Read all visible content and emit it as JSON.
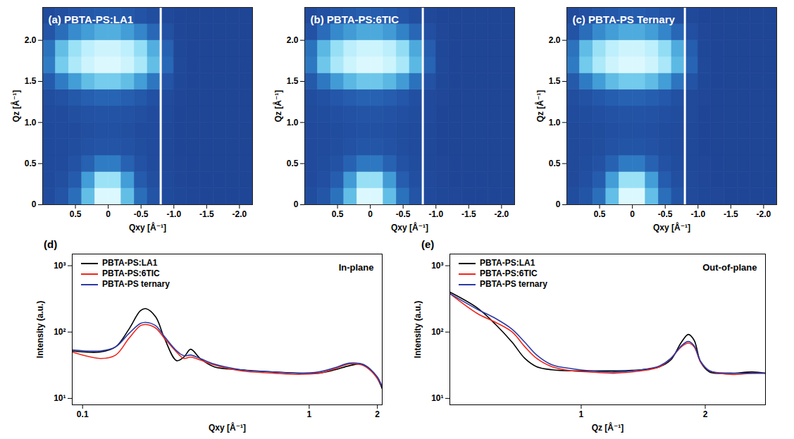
{
  "chart_data": [
    {
      "type": "heatmap",
      "title": "(a) PBTA-PS:LA1",
      "x_label": "Qxy [Å⁻¹]",
      "y_label": "Qz [Å⁻¹]",
      "xlim": [
        1.0,
        -2.2
      ],
      "ylim": [
        0,
        2.4
      ],
      "xticks": [
        0.5,
        0,
        -0.5,
        {
          "value": -1,
          "label": "-1.0"
        },
        -1.5,
        {
          "value": -2,
          "label": "-2.0"
        }
      ],
      "yticks": [
        0,
        0.5,
        {
          "value": 1,
          "label": "1.0"
        },
        1.5,
        {
          "value": 2,
          "label": "2.0"
        }
      ],
      "detector_gap_qxy": -0.8,
      "qxy": [
        0.9,
        0.7,
        0.5,
        0.3,
        0.1,
        -0.1,
        -0.3,
        -0.5,
        -0.7,
        -0.9,
        -1.1,
        -1.3,
        -1.5,
        -1.7,
        -1.9,
        -2.1
      ],
      "qz": [
        0.1,
        0.3,
        0.5,
        0.7,
        0.9,
        1.1,
        1.3,
        1.5,
        1.7,
        1.9,
        2.1,
        2.3
      ],
      "intensity": [
        [
          0.12,
          0.18,
          0.3,
          0.55,
          0.9,
          0.9,
          0.55,
          0.3,
          0.18,
          0.1,
          0.08,
          0.07,
          0.06,
          0.06,
          0.06,
          0.06
        ],
        [
          0.1,
          0.14,
          0.22,
          0.45,
          0.7,
          0.7,
          0.45,
          0.22,
          0.14,
          0.1,
          0.07,
          0.06,
          0.06,
          0.06,
          0.05,
          0.05
        ],
        [
          0.1,
          0.12,
          0.16,
          0.25,
          0.35,
          0.35,
          0.25,
          0.16,
          0.12,
          0.09,
          0.07,
          0.06,
          0.05,
          0.05,
          0.05,
          0.05
        ],
        [
          0.1,
          0.11,
          0.13,
          0.16,
          0.18,
          0.18,
          0.16,
          0.13,
          0.11,
          0.09,
          0.06,
          0.05,
          0.05,
          0.05,
          0.05,
          0.05
        ],
        [
          0.1,
          0.11,
          0.12,
          0.14,
          0.15,
          0.15,
          0.14,
          0.12,
          0.11,
          0.09,
          0.06,
          0.05,
          0.05,
          0.05,
          0.05,
          0.05
        ],
        [
          0.11,
          0.12,
          0.14,
          0.16,
          0.17,
          0.17,
          0.16,
          0.14,
          0.12,
          0.1,
          0.06,
          0.05,
          0.05,
          0.05,
          0.05,
          0.05
        ],
        [
          0.13,
          0.16,
          0.2,
          0.24,
          0.26,
          0.26,
          0.24,
          0.2,
          0.15,
          0.11,
          0.07,
          0.05,
          0.05,
          0.05,
          0.05,
          0.05
        ],
        [
          0.22,
          0.35,
          0.45,
          0.55,
          0.6,
          0.6,
          0.55,
          0.45,
          0.33,
          0.18,
          0.08,
          0.06,
          0.05,
          0.05,
          0.05,
          0.05
        ],
        [
          0.35,
          0.6,
          0.75,
          0.85,
          0.9,
          0.9,
          0.85,
          0.74,
          0.55,
          0.28,
          0.09,
          0.06,
          0.05,
          0.05,
          0.05,
          0.05
        ],
        [
          0.32,
          0.55,
          0.7,
          0.8,
          0.85,
          0.85,
          0.8,
          0.68,
          0.5,
          0.25,
          0.08,
          0.06,
          0.05,
          0.05,
          0.05,
          0.05
        ],
        [
          0.18,
          0.3,
          0.4,
          0.45,
          0.5,
          0.5,
          0.45,
          0.38,
          0.28,
          0.15,
          0.07,
          0.05,
          0.05,
          0.05,
          0.05,
          0.05
        ],
        [
          0.1,
          0.14,
          0.18,
          0.2,
          0.22,
          0.22,
          0.2,
          0.17,
          0.13,
          0.09,
          0.06,
          0.05,
          0.05,
          0.05,
          0.05,
          0.05
        ]
      ]
    },
    {
      "type": "heatmap",
      "title": "(b) PBTA-PS:6TIC",
      "x_label": "Qxy [Å⁻¹]",
      "y_label": "Qz [Å⁻¹]",
      "xlim": [
        1.0,
        -2.2
      ],
      "ylim": [
        0,
        2.4
      ],
      "xticks": [
        0.5,
        0,
        -0.5,
        {
          "value": -1,
          "label": "-1.0"
        },
        -1.5,
        {
          "value": -2,
          "label": "-2.0"
        }
      ],
      "yticks": [
        0,
        0.5,
        {
          "value": 1,
          "label": "1.0"
        },
        1.5,
        {
          "value": 2,
          "label": "2.0"
        }
      ],
      "detector_gap_qxy": -0.8,
      "qxy": [
        0.9,
        0.7,
        0.5,
        0.3,
        0.1,
        -0.1,
        -0.3,
        -0.5,
        -0.7,
        -0.9,
        -1.1,
        -1.3,
        -1.5,
        -1.7,
        -1.9,
        -2.1
      ],
      "qz": [
        0.1,
        0.3,
        0.5,
        0.7,
        0.9,
        1.1,
        1.3,
        1.5,
        1.7,
        1.9,
        2.1,
        2.3
      ],
      "intensity": [
        [
          0.12,
          0.18,
          0.3,
          0.52,
          0.85,
          0.85,
          0.52,
          0.3,
          0.17,
          0.1,
          0.08,
          0.07,
          0.06,
          0.06,
          0.06,
          0.06
        ],
        [
          0.1,
          0.14,
          0.22,
          0.42,
          0.65,
          0.65,
          0.42,
          0.22,
          0.14,
          0.1,
          0.07,
          0.06,
          0.06,
          0.06,
          0.05,
          0.05
        ],
        [
          0.1,
          0.12,
          0.16,
          0.24,
          0.32,
          0.32,
          0.24,
          0.16,
          0.12,
          0.09,
          0.07,
          0.06,
          0.05,
          0.05,
          0.05,
          0.05
        ],
        [
          0.1,
          0.11,
          0.13,
          0.16,
          0.18,
          0.18,
          0.16,
          0.13,
          0.11,
          0.09,
          0.06,
          0.05,
          0.05,
          0.05,
          0.05,
          0.05
        ],
        [
          0.1,
          0.11,
          0.12,
          0.14,
          0.15,
          0.15,
          0.14,
          0.12,
          0.11,
          0.09,
          0.06,
          0.05,
          0.05,
          0.05,
          0.05,
          0.05
        ],
        [
          0.11,
          0.12,
          0.14,
          0.16,
          0.17,
          0.17,
          0.16,
          0.14,
          0.12,
          0.1,
          0.06,
          0.05,
          0.05,
          0.05,
          0.05,
          0.05
        ],
        [
          0.12,
          0.15,
          0.19,
          0.22,
          0.24,
          0.24,
          0.22,
          0.19,
          0.14,
          0.1,
          0.07,
          0.05,
          0.05,
          0.05,
          0.05,
          0.05
        ],
        [
          0.2,
          0.32,
          0.42,
          0.5,
          0.55,
          0.55,
          0.5,
          0.42,
          0.3,
          0.16,
          0.08,
          0.06,
          0.05,
          0.05,
          0.05,
          0.05
        ],
        [
          0.32,
          0.55,
          0.7,
          0.8,
          0.85,
          0.85,
          0.8,
          0.7,
          0.5,
          0.25,
          0.09,
          0.06,
          0.05,
          0.05,
          0.05,
          0.05
        ],
        [
          0.3,
          0.5,
          0.65,
          0.75,
          0.8,
          0.8,
          0.75,
          0.64,
          0.46,
          0.22,
          0.08,
          0.06,
          0.05,
          0.05,
          0.05,
          0.05
        ],
        [
          0.16,
          0.28,
          0.37,
          0.42,
          0.46,
          0.46,
          0.42,
          0.35,
          0.26,
          0.14,
          0.07,
          0.05,
          0.05,
          0.05,
          0.05,
          0.05
        ],
        [
          0.1,
          0.14,
          0.18,
          0.2,
          0.22,
          0.22,
          0.2,
          0.17,
          0.13,
          0.09,
          0.06,
          0.05,
          0.05,
          0.05,
          0.05,
          0.05
        ]
      ]
    },
    {
      "type": "heatmap",
      "title": "(c) PBTA-PS Ternary",
      "x_label": "Qxy [Å⁻¹]",
      "y_label": "Qz [Å⁻¹]",
      "xlim": [
        1.0,
        -2.2
      ],
      "ylim": [
        0,
        2.4
      ],
      "xticks": [
        0.5,
        0,
        -0.5,
        {
          "value": -1,
          "label": "-1.0"
        },
        -1.5,
        {
          "value": -2,
          "label": "-2.0"
        }
      ],
      "yticks": [
        0,
        0.5,
        {
          "value": 1,
          "label": "1.0"
        },
        1.5,
        {
          "value": 2,
          "label": "2.0"
        }
      ],
      "detector_gap_qxy": -0.8,
      "qxy": [
        0.9,
        0.7,
        0.5,
        0.3,
        0.1,
        -0.1,
        -0.3,
        -0.5,
        -0.7,
        -0.9,
        -1.1,
        -1.3,
        -1.5,
        -1.7,
        -1.9,
        -2.1
      ],
      "qz": [
        0.1,
        0.3,
        0.5,
        0.7,
        0.9,
        1.1,
        1.3,
        1.5,
        1.7,
        1.9,
        2.1,
        2.3
      ],
      "intensity": [
        [
          0.12,
          0.18,
          0.3,
          0.54,
          0.88,
          0.88,
          0.54,
          0.3,
          0.18,
          0.1,
          0.08,
          0.07,
          0.06,
          0.06,
          0.06,
          0.06
        ],
        [
          0.1,
          0.14,
          0.22,
          0.44,
          0.68,
          0.68,
          0.44,
          0.22,
          0.14,
          0.1,
          0.07,
          0.06,
          0.06,
          0.06,
          0.05,
          0.05
        ],
        [
          0.1,
          0.12,
          0.16,
          0.25,
          0.34,
          0.34,
          0.25,
          0.16,
          0.12,
          0.09,
          0.07,
          0.06,
          0.05,
          0.05,
          0.05,
          0.05
        ],
        [
          0.1,
          0.11,
          0.13,
          0.16,
          0.18,
          0.18,
          0.16,
          0.13,
          0.11,
          0.09,
          0.06,
          0.05,
          0.05,
          0.05,
          0.05,
          0.05
        ],
        [
          0.1,
          0.11,
          0.12,
          0.14,
          0.15,
          0.15,
          0.14,
          0.12,
          0.11,
          0.09,
          0.06,
          0.05,
          0.05,
          0.05,
          0.05,
          0.05
        ],
        [
          0.11,
          0.12,
          0.14,
          0.16,
          0.17,
          0.17,
          0.16,
          0.14,
          0.12,
          0.1,
          0.06,
          0.05,
          0.05,
          0.05,
          0.05,
          0.05
        ],
        [
          0.13,
          0.16,
          0.2,
          0.23,
          0.25,
          0.25,
          0.23,
          0.2,
          0.15,
          0.1,
          0.07,
          0.05,
          0.05,
          0.05,
          0.05,
          0.05
        ],
        [
          0.21,
          0.34,
          0.44,
          0.53,
          0.58,
          0.58,
          0.53,
          0.44,
          0.32,
          0.17,
          0.08,
          0.06,
          0.05,
          0.05,
          0.05,
          0.05
        ],
        [
          0.34,
          0.58,
          0.73,
          0.83,
          0.88,
          0.88,
          0.83,
          0.72,
          0.52,
          0.26,
          0.09,
          0.06,
          0.05,
          0.05,
          0.05,
          0.05
        ],
        [
          0.31,
          0.53,
          0.68,
          0.78,
          0.83,
          0.83,
          0.78,
          0.66,
          0.48,
          0.23,
          0.08,
          0.06,
          0.05,
          0.05,
          0.05,
          0.05
        ],
        [
          0.17,
          0.29,
          0.39,
          0.44,
          0.48,
          0.48,
          0.44,
          0.37,
          0.27,
          0.14,
          0.07,
          0.05,
          0.05,
          0.05,
          0.05,
          0.05
        ],
        [
          0.1,
          0.14,
          0.18,
          0.2,
          0.22,
          0.22,
          0.2,
          0.17,
          0.13,
          0.09,
          0.06,
          0.05,
          0.05,
          0.05,
          0.05,
          0.05
        ]
      ]
    },
    {
      "type": "line",
      "title": "(d)",
      "annotation": "In-plane",
      "x_label": "Qxy [Å⁻¹]",
      "y_label": "Intensity (a.u.)",
      "log": true,
      "legend": "top-left",
      "xlim": [
        0.09,
        2.1
      ],
      "ylim": [
        8,
        1500
      ],
      "xticks": [
        0.1,
        1,
        2
      ],
      "yticks": [
        {
          "value": 10,
          "label": "10¹"
        },
        {
          "value": 100,
          "label": "10²"
        },
        {
          "value": 1000,
          "label": "10³"
        }
      ],
      "x": [
        0.09,
        0.12,
        0.14,
        0.16,
        0.18,
        0.19,
        0.21,
        0.23,
        0.26,
        0.28,
        0.3,
        0.33,
        0.38,
        0.5,
        0.7,
        0.9,
        1.1,
        1.3,
        1.5,
        1.7,
        1.85,
        2.0,
        2.1
      ],
      "series": [
        {
          "name": "PBTA-PS:LA1",
          "color": "#000000",
          "values": [
            52,
            50,
            60,
            110,
            210,
            225,
            170,
            80,
            37,
            42,
            55,
            40,
            30,
            27,
            25,
            24,
            24,
            27,
            31,
            33,
            28,
            20,
            14
          ]
        },
        {
          "name": "PBTA-PS:6TIC",
          "color": "#f0261c",
          "values": [
            50,
            40,
            45,
            80,
            125,
            130,
            115,
            80,
            50,
            40,
            42,
            38,
            32,
            26,
            24,
            23,
            24,
            28,
            33,
            32,
            27,
            20,
            15
          ]
        },
        {
          "name": "PBTA-PS ternary",
          "color": "#2b3aa6",
          "values": [
            54,
            52,
            60,
            95,
            135,
            140,
            125,
            85,
            52,
            44,
            45,
            40,
            33,
            27,
            25,
            24,
            25,
            29,
            34,
            33,
            28,
            21,
            15
          ]
        }
      ]
    },
    {
      "type": "line",
      "title": "(e)",
      "annotation": "Out-of-plane",
      "x_label": "Qz [Å⁻¹]",
      "y_label": "Intensity (a.u.)",
      "log": true,
      "legend": "top-left",
      "xlim": [
        0.48,
        2.8
      ],
      "ylim": [
        8,
        1500
      ],
      "xticks": [
        1,
        2
      ],
      "yticks": [
        {
          "value": 10,
          "label": "10¹"
        },
        {
          "value": 100,
          "label": "10²"
        },
        {
          "value": 1000,
          "label": "10³"
        }
      ],
      "x": [
        0.48,
        0.56,
        0.62,
        0.68,
        0.73,
        0.78,
        0.85,
        0.95,
        1.05,
        1.2,
        1.4,
        1.55,
        1.65,
        1.75,
        1.82,
        1.88,
        1.95,
        2.05,
        2.3,
        2.6,
        2.8
      ],
      "series": [
        {
          "name": "PBTA-PS:LA1",
          "color": "#000000",
          "values": [
            400,
            230,
            130,
            70,
            40,
            30,
            27,
            26,
            26,
            26,
            27,
            30,
            38,
            70,
            92,
            75,
            35,
            25,
            24,
            25,
            24
          ]
        },
        {
          "name": "PBTA-PS:6TIC",
          "color": "#f0261c",
          "values": [
            380,
            190,
            140,
            100,
            60,
            40,
            30,
            26,
            25,
            24,
            26,
            30,
            40,
            60,
            68,
            60,
            35,
            26,
            23,
            24,
            24
          ]
        },
        {
          "name": "PBTA-PS ternary",
          "color": "#2b3aa6",
          "values": [
            380,
            220,
            160,
            110,
            70,
            45,
            32,
            28,
            26,
            25,
            27,
            31,
            40,
            62,
            72,
            62,
            36,
            26,
            24,
            24,
            24
          ]
        }
      ]
    }
  ]
}
